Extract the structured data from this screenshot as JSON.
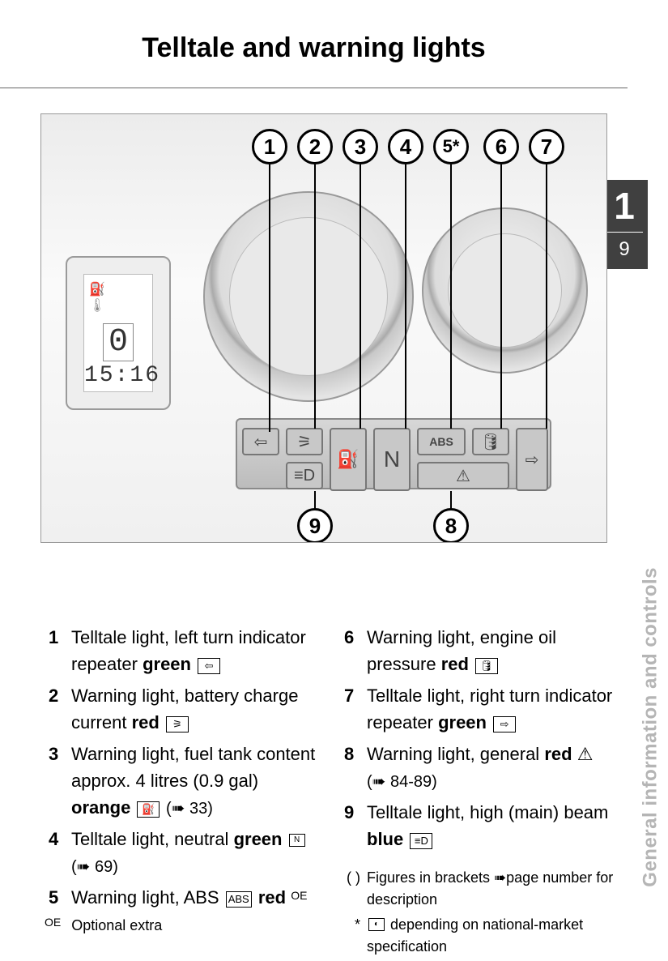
{
  "title": "Telltale and warning lights",
  "tab": {
    "chapter": "1",
    "page": "9"
  },
  "side_label": "General information and controls",
  "figure": {
    "lcd": {
      "gear": "0",
      "clock": "15:16"
    },
    "indicator_labels": {
      "abs": "ABS",
      "neutral": "N"
    }
  },
  "callouts_top": [
    {
      "n": "1"
    },
    {
      "n": "2"
    },
    {
      "n": "3"
    },
    {
      "n": "4"
    },
    {
      "n": "5*"
    },
    {
      "n": "6"
    },
    {
      "n": "7"
    }
  ],
  "callouts_bottom": [
    {
      "n": "9"
    },
    {
      "n": "8"
    }
  ],
  "legend_left": [
    {
      "n": "1",
      "pre": "Telltale light, left turn indicator repeater ",
      "bold": "green",
      "icon": "⇦",
      "post": ""
    },
    {
      "n": "2",
      "pre": "Warning light, battery charge current ",
      "bold": "red",
      "icon": "⚞",
      "post": ""
    },
    {
      "n": "3",
      "pre": "Warning light, fuel tank content approx. 4 litres (0.9 gal) ",
      "bold": "orange",
      "icon": "⛽",
      "post": " (➠ 33)"
    },
    {
      "n": "4",
      "pre": "Telltale light, neutral ",
      "bold": "green",
      "icon": "N",
      "post": " (➠ 69)",
      "icon_small": true
    },
    {
      "n": "5",
      "pre": "Warning light, ABS ",
      "icon_first": "ABS",
      "bold": "red",
      "sup": "OE"
    }
  ],
  "legend_right": [
    {
      "n": "6",
      "pre": "Warning light, engine oil pressure ",
      "bold": "red",
      "icon": "🛢",
      "post": ""
    },
    {
      "n": "7",
      "pre": "Telltale light, right turn indicator repeater ",
      "bold": "green",
      "icon": "⇨",
      "post": ""
    },
    {
      "n": "8",
      "pre": "Warning light, general ",
      "bold": "red",
      "icon": "⚠",
      "post": " (➠ 84-89)",
      "icon_noborder": true
    },
    {
      "n": "9",
      "pre": "Telltale light, high (main) beam ",
      "bold": "blue",
      "icon": "≡D",
      "post": ""
    }
  ],
  "footnotes": [
    {
      "mark": "( )",
      "text_a": "Figures in brackets ",
      "arrow": "➠",
      "text_b": "page number for description"
    },
    {
      "mark": "*",
      "icon": "◐",
      "text_b": " depending on national-market specification"
    }
  ],
  "oe_note": {
    "mark": "OE",
    "text": "Optional extra"
  }
}
